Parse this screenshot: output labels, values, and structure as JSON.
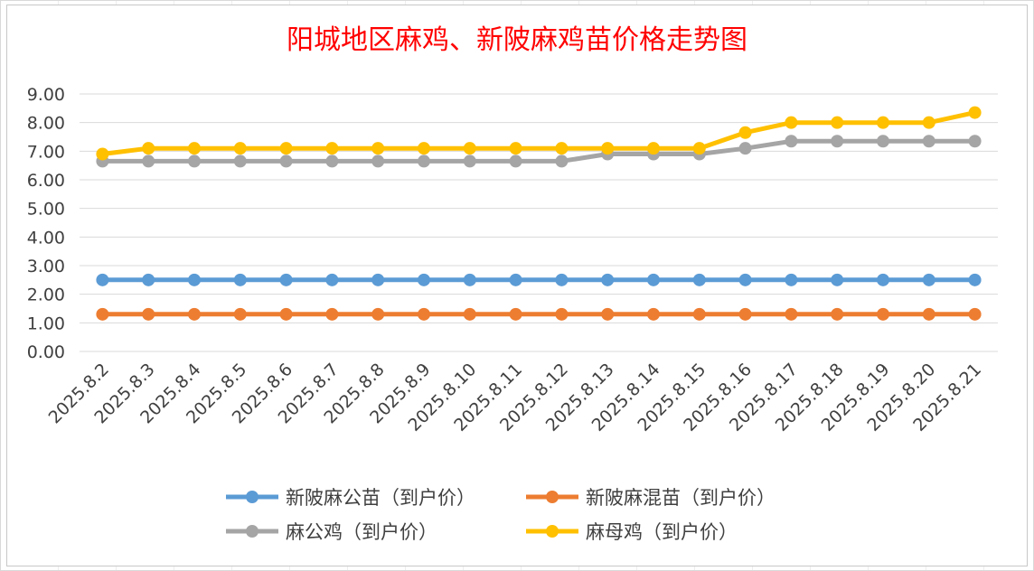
{
  "chart_data": {
    "type": "line",
    "title": "阳城地区麻鸡、新陂麻鸡苗价格走势图",
    "xlabel": "",
    "ylabel": "",
    "ylim": [
      0,
      9
    ],
    "yticks": [
      "0.00",
      "1.00",
      "2.00",
      "3.00",
      "4.00",
      "5.00",
      "6.00",
      "7.00",
      "8.00",
      "9.00"
    ],
    "grid": true,
    "legend_position": "bottom",
    "categories": [
      "2025.8.2",
      "2025.8.3",
      "2025.8.4",
      "2025.8.5",
      "2025.8.6",
      "2025.8.7",
      "2025.8.8",
      "2025.8.9",
      "2025.8.10",
      "2025.8.11",
      "2025.8.12",
      "2025.8.13",
      "2025.8.14",
      "2025.8.15",
      "2025.8.16",
      "2025.8.17",
      "2025.8.18",
      "2025.8.19",
      "2025.8.20",
      "2025.8.21"
    ],
    "series": [
      {
        "name": "新陂麻公苗（到户价）",
        "color": "#5b9bd5",
        "values": [
          2.5,
          2.5,
          2.5,
          2.5,
          2.5,
          2.5,
          2.5,
          2.5,
          2.5,
          2.5,
          2.5,
          2.5,
          2.5,
          2.5,
          2.5,
          2.5,
          2.5,
          2.5,
          2.5,
          2.5
        ]
      },
      {
        "name": "新陂麻混苗（到户价）",
        "color": "#ed7d31",
        "values": [
          1.3,
          1.3,
          1.3,
          1.3,
          1.3,
          1.3,
          1.3,
          1.3,
          1.3,
          1.3,
          1.3,
          1.3,
          1.3,
          1.3,
          1.3,
          1.3,
          1.3,
          1.3,
          1.3,
          1.3
        ]
      },
      {
        "name": "麻公鸡（到户价）",
        "color": "#a5a5a5",
        "values": [
          6.65,
          6.65,
          6.65,
          6.65,
          6.65,
          6.65,
          6.65,
          6.65,
          6.65,
          6.65,
          6.65,
          6.9,
          6.9,
          6.9,
          7.1,
          7.35,
          7.35,
          7.35,
          7.35,
          7.35
        ]
      },
      {
        "name": "麻母鸡（到户价）",
        "color": "#ffc000",
        "values": [
          6.9,
          7.1,
          7.1,
          7.1,
          7.1,
          7.1,
          7.1,
          7.1,
          7.1,
          7.1,
          7.1,
          7.1,
          7.1,
          7.1,
          7.65,
          8.0,
          8.0,
          8.0,
          8.0,
          8.35
        ]
      }
    ]
  }
}
